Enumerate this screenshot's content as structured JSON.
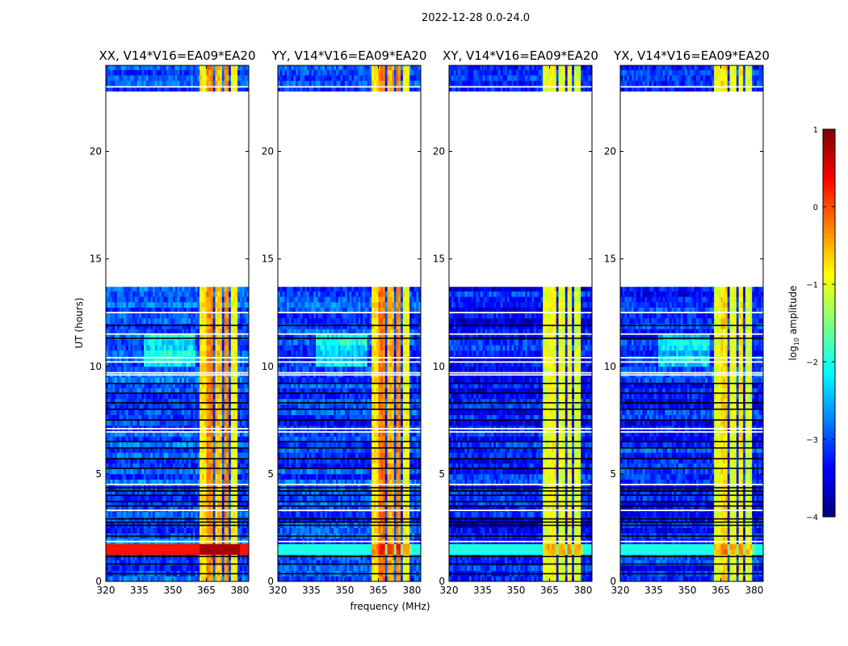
{
  "chart_data": {
    "type": "heatmap",
    "title": "2022-12-28 0.0-24.0",
    "xlabel": "frequency (MHz)",
    "ylabel": "UT (hours)",
    "xlim": [
      320,
      384
    ],
    "ylim": [
      0,
      24
    ],
    "xticks": [
      "320",
      "335",
      "350",
      "365",
      "380"
    ],
    "xtick_values": [
      320,
      335,
      350,
      365,
      380
    ],
    "yticks": [
      "0",
      "5",
      "10",
      "15",
      "20"
    ],
    "ytick_values": [
      0,
      5,
      10,
      15,
      20
    ],
    "colorbar": {
      "label": "log10 amplitude",
      "label_main": "log",
      "label_sub": "10",
      "label_rest": " amplitude",
      "range": [
        -4,
        1
      ],
      "ticks": [
        "1",
        "0",
        "−1",
        "−2",
        "−3",
        "−4"
      ],
      "tick_values": [
        1,
        0,
        -1,
        -2,
        -3,
        -4
      ],
      "colormap": "jet"
    },
    "time_coverage": [
      [
        0,
        13.7
      ],
      [
        22.8,
        24
      ]
    ],
    "time_step_hours": 0.25,
    "freq_step_mhz": 1,
    "flagged_rows_white": [
      1.85,
      4.5,
      3.3,
      7.1,
      6.95,
      9.6,
      9.7,
      10.2,
      10.4,
      11.5,
      12.5,
      23.0
    ],
    "zero_rows_black": [
      0.35,
      0.8,
      1.15,
      2.1,
      2.6,
      2.75,
      2.9,
      3.5,
      3.7,
      4.0,
      4.2,
      4.35,
      5.25,
      5.7,
      6.2,
      6.5,
      7.5,
      8.0,
      8.3,
      8.75,
      9.2,
      11.3,
      11.9
    ],
    "panels": [
      {
        "title": "XX, V14*V16=EA09*EA20",
        "background": -3.0,
        "band_boost": 2.8,
        "bright_row": {
          "hour": 1.5,
          "level": 0.3
        },
        "bands": [
          [
            362,
            365,
            -0.8
          ],
          [
            365.5,
            368.5,
            -0.3
          ],
          [
            369,
            372,
            -0.6
          ],
          [
            372.8,
            375.5,
            -0.3
          ],
          [
            376,
            379.5,
            -0.9
          ]
        ]
      },
      {
        "title": "YY, V14*V16=EA09*EA20",
        "background": -3.1,
        "band_boost": 2.8,
        "bright_row": {
          "hour": 1.5,
          "level": -2.0
        },
        "bands": [
          [
            362,
            365,
            -0.8
          ],
          [
            365.5,
            368.5,
            -0.2
          ],
          [
            369,
            372,
            -0.5
          ],
          [
            372.8,
            375.5,
            -0.3
          ],
          [
            376,
            379.5,
            -0.9
          ]
        ]
      },
      {
        "title": "XY, V14*V16=EA09*EA20",
        "background": -3.3,
        "band_boost": 2.3,
        "bright_row": {
          "hour": 1.5,
          "level": -2.0
        },
        "bands": [
          [
            362,
            365,
            -1.0
          ],
          [
            365.5,
            368.5,
            -0.9
          ],
          [
            369,
            372,
            -1.0
          ],
          [
            372.8,
            375.5,
            -0.9
          ],
          [
            376,
            379.5,
            -1.1
          ]
        ]
      },
      {
        "title": "YX, V14*V16=EA09*EA20",
        "background": -3.2,
        "band_boost": 2.5,
        "bright_row": {
          "hour": 1.5,
          "level": -2.0
        },
        "bands": [
          [
            362,
            365,
            -1.0
          ],
          [
            365.5,
            368.5,
            -0.7
          ],
          [
            369,
            372,
            -1.0
          ],
          [
            372.8,
            375.5,
            -0.8
          ],
          [
            376,
            379.5,
            -1.1
          ]
        ]
      }
    ]
  }
}
